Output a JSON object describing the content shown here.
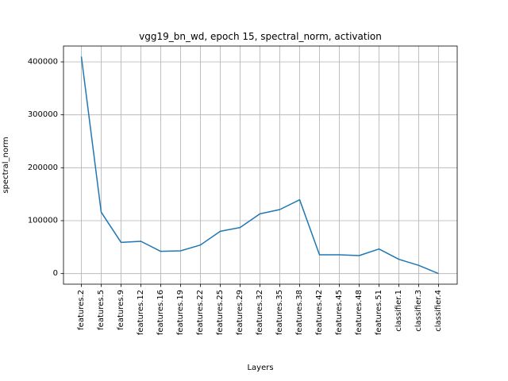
{
  "chart_data": {
    "type": "line",
    "title": "vgg19_bn_wd, epoch 15, spectral_norm, activation",
    "xlabel": "Layers",
    "ylabel": "spectral_norm",
    "categories": [
      "features.2",
      "features.5",
      "features.9",
      "features.12",
      "features.16",
      "features.19",
      "features.22",
      "features.25",
      "features.29",
      "features.32",
      "features.35",
      "features.38",
      "features.42",
      "features.45",
      "features.48",
      "features.51",
      "classifier.1",
      "classifier.3",
      "classifier.4"
    ],
    "series": [
      {
        "values": [
          410000,
          116000,
          59000,
          61000,
          42000,
          43000,
          54000,
          80000,
          87000,
          113000,
          121000,
          139500,
          35500,
          35500,
          34000,
          46500,
          27000,
          15500,
          0
        ]
      }
    ],
    "yticks": [
      0,
      100000,
      200000,
      300000,
      400000
    ],
    "ylim": [
      -20000,
      430000
    ],
    "grid": true,
    "line_color": "#1f77b4"
  }
}
